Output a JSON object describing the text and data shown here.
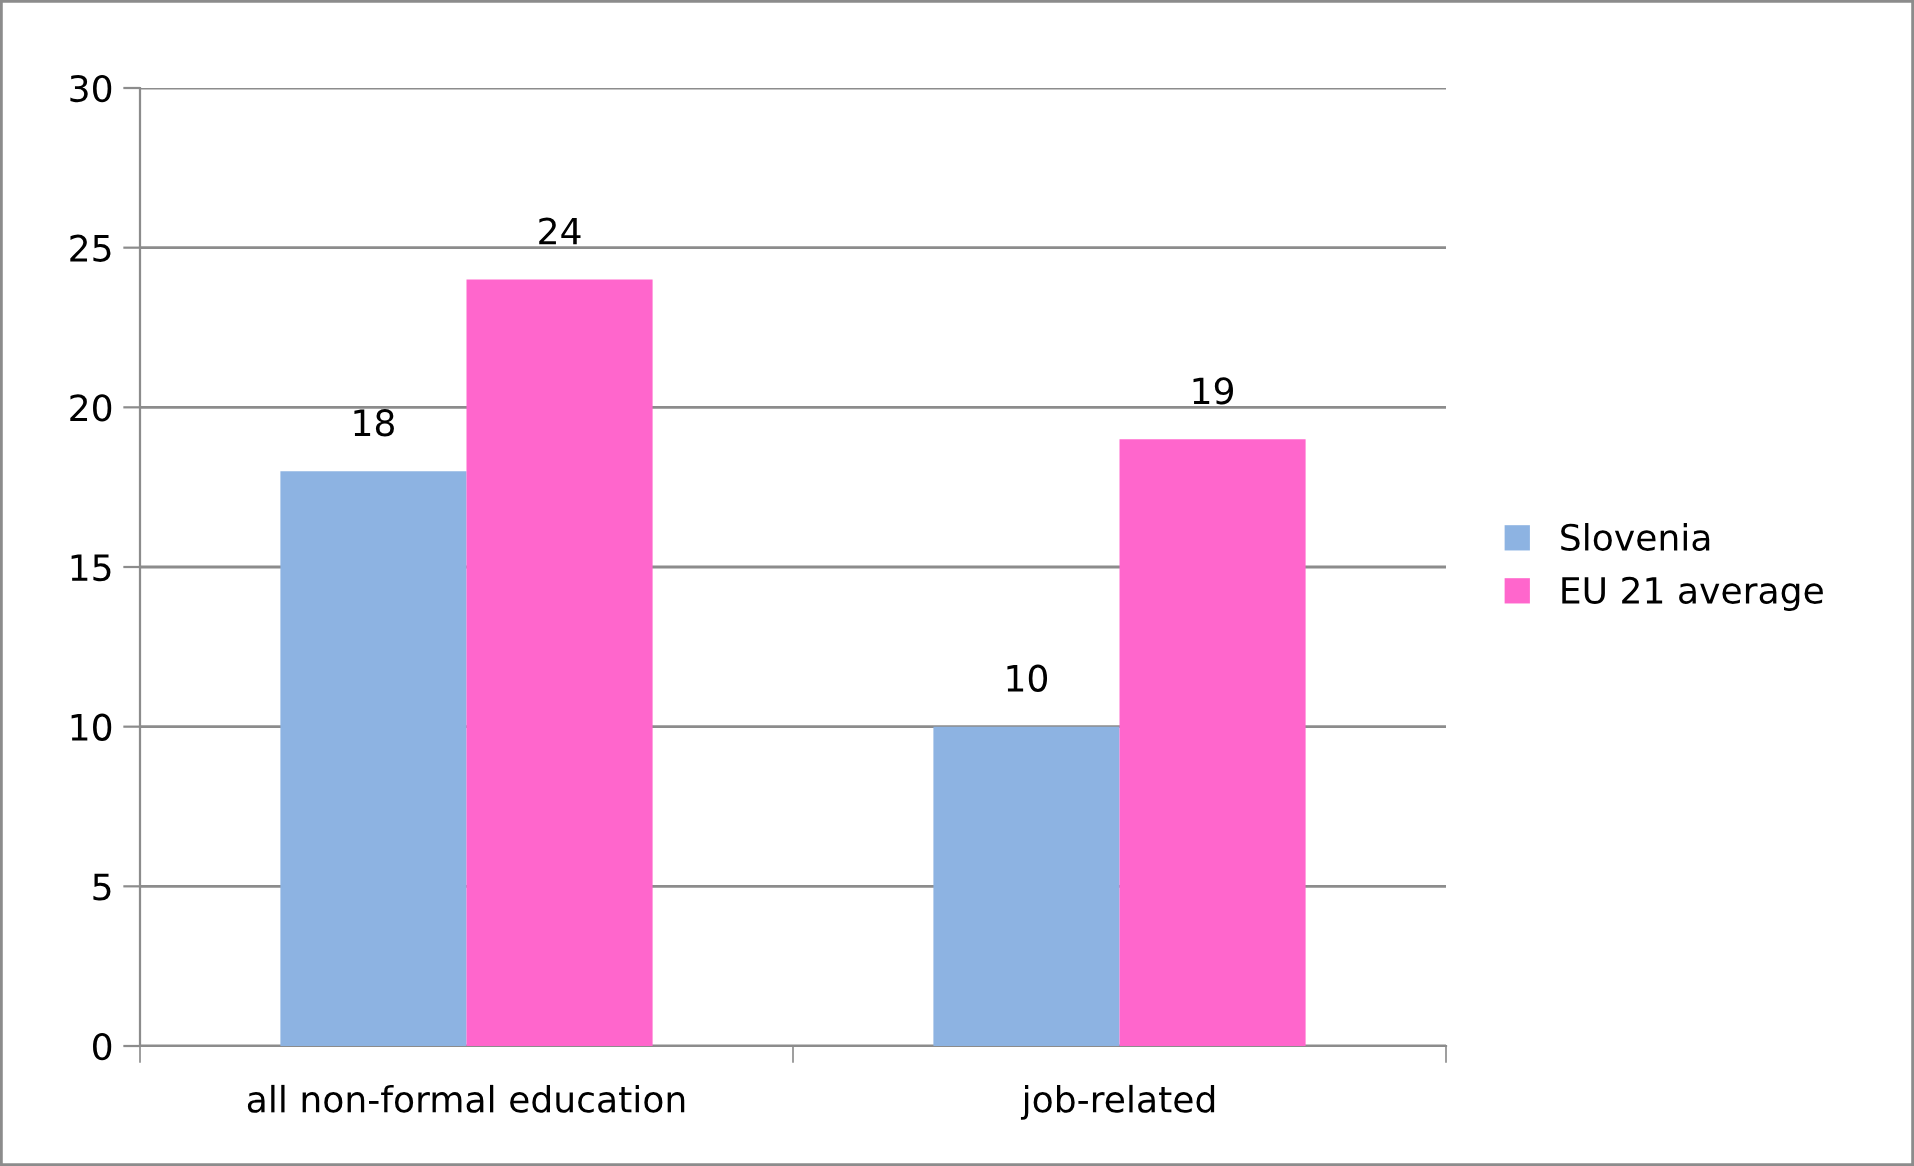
{
  "chart_data": {
    "type": "bar",
    "categories": [
      "all non-formal education",
      "job-related"
    ],
    "series": [
      {
        "name": "Slovenia",
        "color": "#8db3e2",
        "values": [
          18,
          10
        ]
      },
      {
        "name": "EU 21 average",
        "color": "#ff66cc",
        "values": [
          24,
          19
        ]
      }
    ],
    "ylim": [
      0,
      30
    ],
    "yticks": [
      0,
      5,
      10,
      15,
      20,
      25,
      30
    ],
    "grid": "y",
    "legend": "right",
    "data_labels": true
  }
}
